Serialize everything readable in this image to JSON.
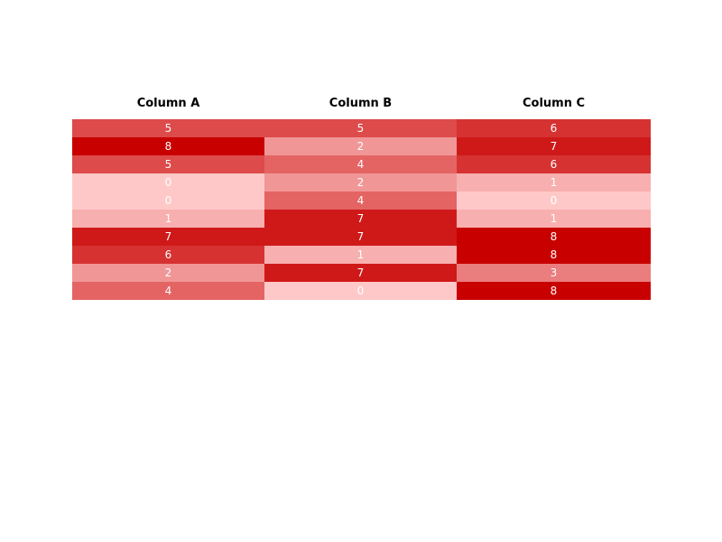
{
  "chart_data": {
    "type": "heatmap",
    "columns": [
      "Column A",
      "Column B",
      "Column C"
    ],
    "rows": [
      [
        5,
        5,
        6
      ],
      [
        8,
        2,
        7
      ],
      [
        5,
        4,
        6
      ],
      [
        0,
        2,
        1
      ],
      [
        0,
        4,
        0
      ],
      [
        1,
        7,
        1
      ],
      [
        7,
        7,
        8
      ],
      [
        6,
        1,
        8
      ],
      [
        2,
        7,
        3
      ],
      [
        4,
        0,
        8
      ]
    ],
    "value_range": [
      0,
      8
    ],
    "color_low": "#ffc8c8",
    "color_high": "#c80000",
    "text_color": "#ffffff"
  }
}
